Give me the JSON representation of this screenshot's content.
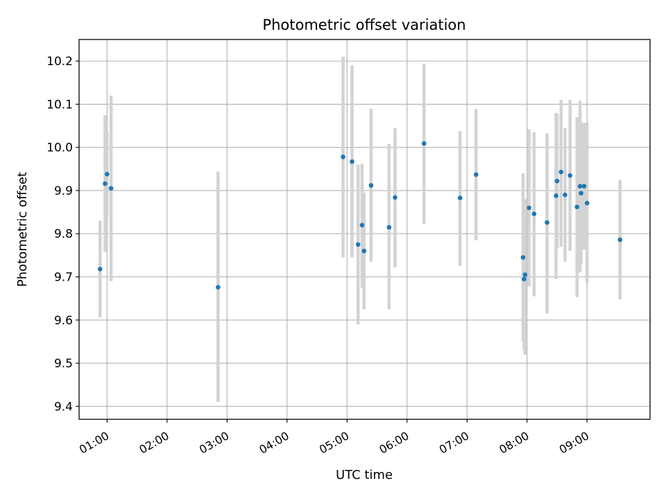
{
  "chart_data": {
    "type": "scatter",
    "title": "Photometric offset variation",
    "xlabel": "UTC time",
    "ylabel": "Photometric offset",
    "x_ticks": [
      "01:00",
      "02:00",
      "03:00",
      "04:00",
      "05:00",
      "06:00",
      "07:00",
      "08:00",
      "09:00"
    ],
    "y_ticks": [
      "9.4",
      "9.5",
      "9.6",
      "9.7",
      "9.8",
      "9.9",
      "10.0",
      "10.1",
      "10.2"
    ],
    "xlim": [
      "00:32",
      "10:03"
    ],
    "ylim": [
      9.37,
      10.25
    ],
    "grid": true,
    "colors": {
      "point": "#1f77b4",
      "errorbar": "#d3d3d3",
      "grid": "#b0b0b0"
    },
    "points": [
      {
        "x": "00:53",
        "y": 9.718,
        "lo": 9.606,
        "hi": 9.83
      },
      {
        "x": "00:58",
        "y": 9.916,
        "lo": 9.757,
        "hi": 10.075
      },
      {
        "x": "01:00",
        "y": 9.938,
        "lo": 9.838,
        "hi": 10.035
      },
      {
        "x": "01:04",
        "y": 9.905,
        "lo": 9.69,
        "hi": 10.12
      },
      {
        "x": "02:51",
        "y": 9.676,
        "lo": 9.41,
        "hi": 9.944
      },
      {
        "x": "04:56",
        "y": 9.978,
        "lo": 9.745,
        "hi": 10.21
      },
      {
        "x": "05:05",
        "y": 9.967,
        "lo": 9.745,
        "hi": 10.19
      },
      {
        "x": "05:11",
        "y": 9.775,
        "lo": 9.59,
        "hi": 9.96
      },
      {
        "x": "05:15",
        "y": 9.82,
        "lo": 9.675,
        "hi": 9.962
      },
      {
        "x": "05:17",
        "y": 9.76,
        "lo": 9.625,
        "hi": 9.895
      },
      {
        "x": "05:24",
        "y": 9.912,
        "lo": 9.735,
        "hi": 10.09
      },
      {
        "x": "05:42",
        "y": 9.815,
        "lo": 9.625,
        "hi": 10.008
      },
      {
        "x": "05:48",
        "y": 9.884,
        "lo": 9.722,
        "hi": 10.045
      },
      {
        "x": "06:17",
        "y": 10.009,
        "lo": 9.823,
        "hi": 10.194
      },
      {
        "x": "06:53",
        "y": 9.883,
        "lo": 9.725,
        "hi": 10.038
      },
      {
        "x": "07:09",
        "y": 9.937,
        "lo": 9.785,
        "hi": 10.089
      },
      {
        "x": "07:56",
        "y": 9.745,
        "lo": 9.55,
        "hi": 9.94
      },
      {
        "x": "07:57",
        "y": 9.695,
        "lo": 9.53,
        "hi": 9.86
      },
      {
        "x": "07:58",
        "y": 9.705,
        "lo": 9.52,
        "hi": 9.88
      },
      {
        "x": "08:02",
        "y": 9.86,
        "lo": 9.678,
        "hi": 10.042
      },
      {
        "x": "08:07",
        "y": 9.846,
        "lo": 9.655,
        "hi": 10.035
      },
      {
        "x": "08:20",
        "y": 9.826,
        "lo": 9.615,
        "hi": 10.033
      },
      {
        "x": "08:29",
        "y": 9.888,
        "lo": 9.695,
        "hi": 10.08
      },
      {
        "x": "08:30",
        "y": 9.922,
        "lo": 9.765,
        "hi": 10.078
      },
      {
        "x": "08:34",
        "y": 9.943,
        "lo": 9.77,
        "hi": 10.11
      },
      {
        "x": "08:38",
        "y": 9.89,
        "lo": 9.735,
        "hi": 10.045
      },
      {
        "x": "08:43",
        "y": 9.935,
        "lo": 9.76,
        "hi": 10.11
      },
      {
        "x": "08:50",
        "y": 9.862,
        "lo": 9.653,
        "hi": 10.07
      },
      {
        "x": "08:53",
        "y": 9.91,
        "lo": 9.71,
        "hi": 10.108
      },
      {
        "x": "08:54",
        "y": 9.894,
        "lo": 9.728,
        "hi": 10.058
      },
      {
        "x": "08:57",
        "y": 9.91,
        "lo": 9.763,
        "hi": 10.057
      },
      {
        "x": "09:00",
        "y": 9.871,
        "lo": 9.685,
        "hi": 10.057
      },
      {
        "x": "09:33",
        "y": 9.786,
        "lo": 9.648,
        "hi": 9.925
      }
    ]
  }
}
